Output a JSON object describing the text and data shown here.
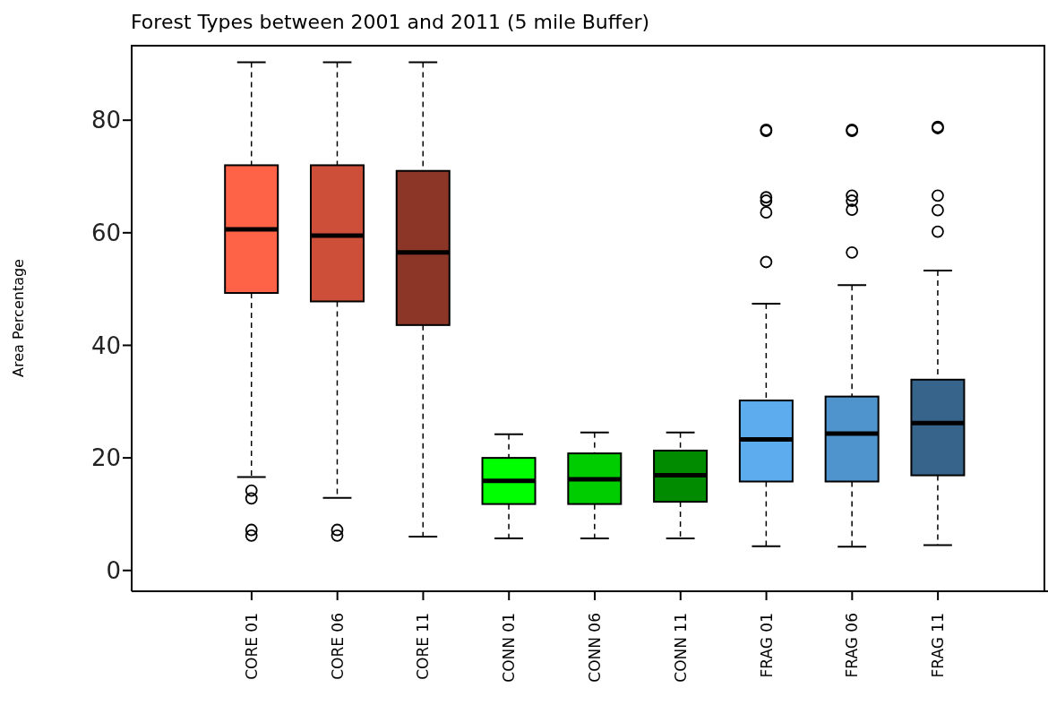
{
  "chart_data": {
    "type": "box",
    "title": "Forest Types between 2001 and 2011 (5 mile Buffer)",
    "ylabel": "Area Percentage",
    "categories": [
      "CORE 01",
      "CORE 06",
      "CORE 11",
      "CONN 01",
      "CONN 06",
      "CONN 11",
      "FRAG 01",
      "FRAG 06",
      "FRAG 11"
    ],
    "colors": [
      "#ff6347",
      "#cd4f39",
      "#8b3626",
      "#00ff00",
      "#00cd00",
      "#008b00",
      "#5cacee",
      "#4f94cd",
      "#36648b"
    ],
    "boxes": [
      {
        "low": 16.6,
        "q1": 49.3,
        "median": 60.6,
        "q3": 72,
        "high": 90.3,
        "outliers": [
          14.2,
          12.8,
          7.2,
          6.2
        ]
      },
      {
        "low": 12.9,
        "q1": 47.8,
        "median": 59.5,
        "q3": 72,
        "high": 90.3,
        "outliers": [
          7.2,
          6.2
        ]
      },
      {
        "low": 6,
        "q1": 43.6,
        "median": 56.5,
        "q3": 71,
        "high": 90.3
      },
      {
        "low": 5.7,
        "q1": 11.8,
        "median": 15.9,
        "q3": 20,
        "high": 24.2
      },
      {
        "low": 5.7,
        "q1": 11.8,
        "median": 16.2,
        "q3": 20.8,
        "high": 24.5
      },
      {
        "low": 5.7,
        "q1": 12.2,
        "median": 16.9,
        "q3": 21.3,
        "high": 24.5
      },
      {
        "low": 4.3,
        "q1": 15.8,
        "median": 23.3,
        "q3": 30.2,
        "high": 47.4,
        "outliers": [
          78.1,
          78.3,
          66.3,
          65.7,
          63.6,
          54.8
        ]
      },
      {
        "low": 4.2,
        "q1": 15.8,
        "median": 24.3,
        "q3": 30.9,
        "high": 50.7,
        "outliers": [
          78.1,
          78.3,
          66.6,
          65.7,
          64.1,
          56.5
        ]
      },
      {
        "low": 4.5,
        "q1": 16.9,
        "median": 26.2,
        "q3": 33.9,
        "high": 53.3,
        "outliers": [
          78.8,
          78.6,
          66.6,
          64,
          60.2
        ]
      }
    ],
    "ylim": [
      -3.7,
      93.4
    ],
    "yticks": [
      0,
      20,
      40,
      60,
      80
    ]
  }
}
